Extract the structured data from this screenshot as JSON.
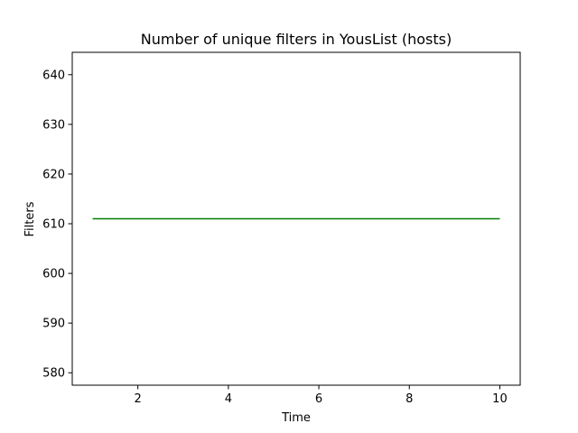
{
  "chart_data": {
    "type": "line",
    "title": "Number of unique filters in YousList (hosts)",
    "xlabel": "Time",
    "ylabel": "Filters",
    "xlim": [
      0.55,
      10.45
    ],
    "ylim": [
      577.5,
      644.5
    ],
    "xticks": [
      2,
      4,
      6,
      8,
      10
    ],
    "yticks": [
      580,
      590,
      600,
      610,
      620,
      630,
      640
    ],
    "grid": false,
    "series": [
      {
        "name": "filters",
        "color": "#008000",
        "x": [
          1,
          2,
          3,
          4,
          5,
          6,
          7,
          8,
          9,
          10
        ],
        "y": [
          611,
          611,
          611,
          611,
          611,
          611,
          611,
          611,
          611,
          611
        ]
      }
    ]
  }
}
